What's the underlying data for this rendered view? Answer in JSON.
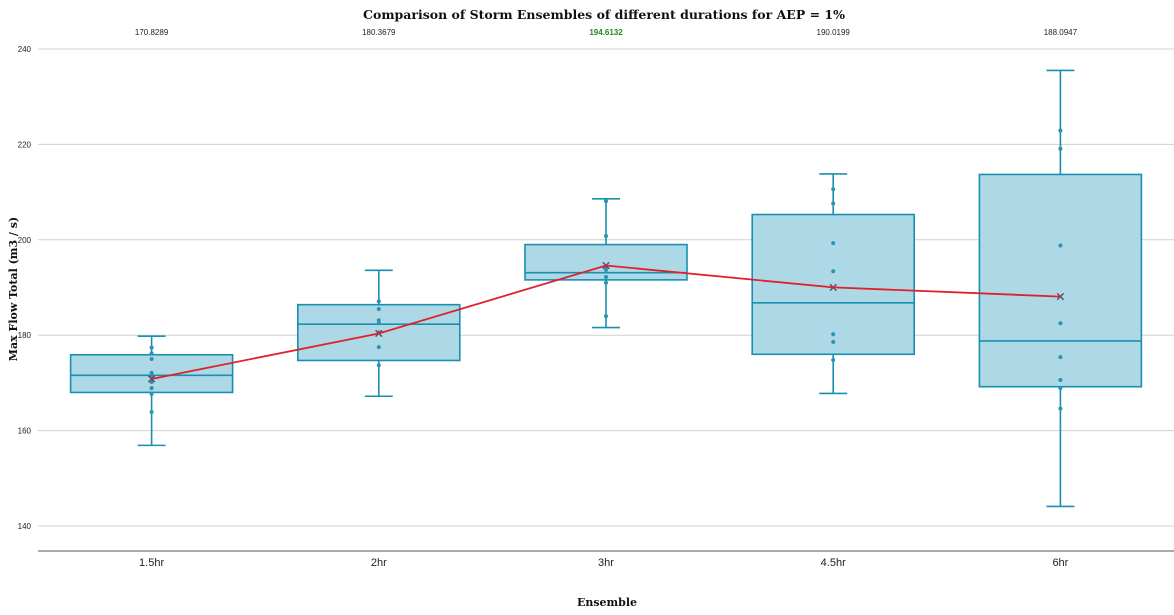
{
  "chart_data": {
    "type": "box",
    "title": "Comparison of Storm Ensembles of different durations for AEP =  1%",
    "xlabel": "Ensemble",
    "ylabel": "Max Flow Total (m3 / s)",
    "ylim": [
      135,
      244
    ],
    "yticks": [
      140,
      160,
      180,
      200,
      220,
      240
    ],
    "ytick_labels": [
      "140",
      "160",
      "180",
      "200",
      "220",
      "240"
    ],
    "grid": true,
    "colors": {
      "box_fill": "#add8e6",
      "box_stroke": "#1a8fb0",
      "mean_line": "#e0202a",
      "mean_marker": "#5a4a6a",
      "highlight_label": "#1e8a1e",
      "grid": "#d0d0d0"
    },
    "categories": [
      "1.5hr",
      "2hr",
      "3hr",
      "4.5hr",
      "6hr"
    ],
    "boxes": [
      {
        "category": "1.5hr",
        "min": 156.9,
        "q1": 168.0,
        "median": 171.6,
        "q3": 175.9,
        "max": 179.8,
        "mean": 170.8289,
        "mean_label": "170.8289",
        "points": [
          177.4,
          176.2,
          175.0,
          172.1,
          171.3,
          170.2,
          168.9,
          167.7,
          163.9
        ]
      },
      {
        "category": "2hr",
        "min": 167.2,
        "q1": 174.7,
        "median": 182.3,
        "q3": 186.4,
        "max": 193.6,
        "mean": 180.3679,
        "mean_label": "180.3679",
        "points": [
          187.1,
          185.5,
          183.1,
          182.5,
          180.6,
          177.5,
          173.7
        ]
      },
      {
        "category": "3hr",
        "min": 181.6,
        "q1": 191.6,
        "median": 193.1,
        "q3": 199.0,
        "max": 208.6,
        "mean": 194.6132,
        "mean_label": "194.6132",
        "highlight": true,
        "points": [
          208.1,
          200.8,
          194.4,
          193.7,
          192.2,
          191.0,
          184.0
        ]
      },
      {
        "category": "4.5hr",
        "min": 167.8,
        "q1": 176.0,
        "median": 186.8,
        "q3": 205.3,
        "max": 213.8,
        "mean": 190.0199,
        "mean_label": "190.0199",
        "points": [
          210.6,
          207.6,
          199.3,
          193.4,
          180.2,
          178.6,
          174.8
        ]
      },
      {
        "category": "6hr",
        "min": 144.1,
        "q1": 169.2,
        "median": 178.8,
        "q3": 213.7,
        "max": 235.5,
        "mean": 188.0947,
        "mean_label": "188.0947",
        "points": [
          222.9,
          219.1,
          198.8,
          182.5,
          175.4,
          170.6,
          168.9,
          164.6
        ]
      }
    ],
    "mean_line": {
      "values": [
        170.8289,
        180.3679,
        194.6132,
        190.0199,
        188.0947
      ]
    }
  }
}
